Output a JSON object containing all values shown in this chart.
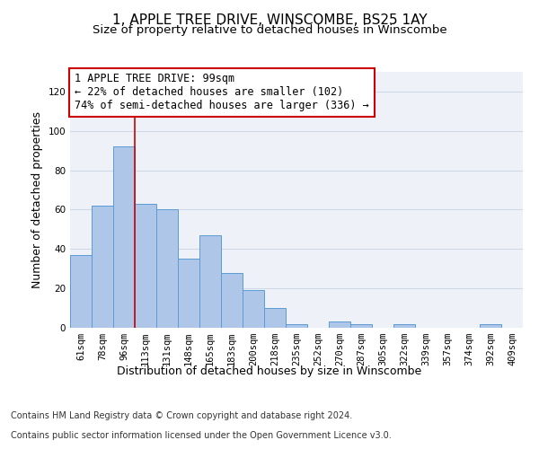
{
  "title_line1": "1, APPLE TREE DRIVE, WINSCOMBE, BS25 1AY",
  "title_line2": "Size of property relative to detached houses in Winscombe",
  "xlabel": "Distribution of detached houses by size in Winscombe",
  "ylabel": "Number of detached properties",
  "categories": [
    "61sqm",
    "78sqm",
    "96sqm",
    "113sqm",
    "131sqm",
    "148sqm",
    "165sqm",
    "183sqm",
    "200sqm",
    "218sqm",
    "235sqm",
    "252sqm",
    "270sqm",
    "287sqm",
    "305sqm",
    "322sqm",
    "339sqm",
    "357sqm",
    "374sqm",
    "392sqm",
    "409sqm"
  ],
  "values": [
    37,
    62,
    92,
    63,
    60,
    35,
    47,
    28,
    19,
    10,
    2,
    0,
    3,
    2,
    0,
    2,
    0,
    0,
    0,
    2,
    0
  ],
  "bar_color": "#aec6e8",
  "bar_edge_color": "#5b9bd5",
  "ylim": [
    0,
    130
  ],
  "yticks": [
    0,
    20,
    40,
    60,
    80,
    100,
    120
  ],
  "grid_color": "#d0d8e8",
  "bg_color": "#eef2f8",
  "annotation_text": "1 APPLE TREE DRIVE: 99sqm\n← 22% of detached houses are smaller (102)\n74% of semi-detached houses are larger (336) →",
  "annotation_box_color": "#ffffff",
  "annotation_box_edge": "#cc0000",
  "property_line_x": 2.5,
  "footer_line1": "Contains HM Land Registry data © Crown copyright and database right 2024.",
  "footer_line2": "Contains public sector information licensed under the Open Government Licence v3.0.",
  "title_fontsize": 11,
  "subtitle_fontsize": 9.5,
  "axis_label_fontsize": 9,
  "tick_fontsize": 7.5,
  "annotation_fontsize": 8.5,
  "footer_fontsize": 7
}
